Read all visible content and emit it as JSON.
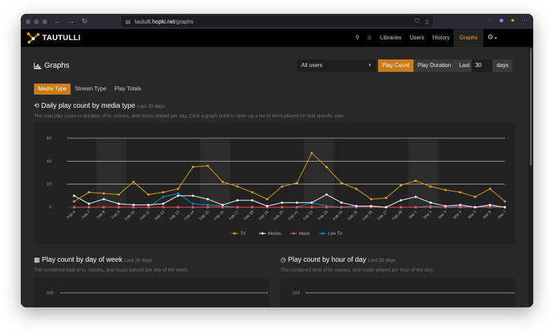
{
  "browser": {
    "url_prefix": "tautulli.",
    "url_host": "hopki.net",
    "url_path": "/graphs"
  },
  "app": {
    "brand": "TAUTULLI",
    "nav": {
      "libraries": "Libraries",
      "users": "Users",
      "history": "History",
      "graphs": "Graphs"
    }
  },
  "page": {
    "title": "Graphs",
    "user_select": "All users",
    "play_count": "Play Count",
    "play_duration": "Play Duration",
    "last_label": "Last",
    "last_value": "30",
    "days_label": "days",
    "tabs": [
      "Media Type",
      "Stream Type",
      "Play Totals"
    ]
  },
  "sections": {
    "daily": {
      "title": "Daily play count by media type",
      "sub": "Last 30 days",
      "desc": "The total play count or duration of tv, movies, and music played per day. Click a graph point to open up a list of items played for that specific date."
    },
    "dow": {
      "title": "Play count by day of week",
      "sub": "Last 30 days",
      "desc": "The combined total of tv, movies, and music played per day of the week.",
      "first_tick": "200"
    },
    "hour": {
      "title": "Play count by hour of day",
      "sub": "Last 30 days",
      "desc": "The combined total of tv, movies, and music played per hour of the day.",
      "first_tick": "100"
    }
  },
  "colors": {
    "accent": "#cc7b19",
    "tv": "#e5a00d",
    "movies": "#ffffff",
    "music": "#f05454",
    "livetv": "#0f8fd8"
  },
  "chart_data": {
    "type": "line",
    "categories": [
      "Feb 6",
      "Feb 7",
      "Feb 8",
      "Feb 9",
      "Feb 10",
      "Feb 11",
      "Feb 12",
      "Feb 13",
      "Feb 14",
      "Feb 15",
      "Feb 16",
      "Feb 17",
      "Feb 18",
      "Feb 19",
      "Feb 20",
      "Feb 21",
      "Feb 22",
      "Feb 23",
      "Feb 24",
      "Feb 25",
      "Feb 26",
      "Feb 27",
      "Feb 28",
      "Mar 1",
      "Mar 2",
      "Mar 3",
      "Mar 4",
      "Mar 5",
      "Mar 6",
      "Mar 7"
    ],
    "yticks": [
      0,
      20,
      40,
      60
    ],
    "ylim": [
      0,
      60
    ],
    "grid": true,
    "legend_position": "bottom-center",
    "series": [
      {
        "name": "TV",
        "color": "#e5a00d",
        "values": [
          5,
          13,
          12,
          11,
          22,
          11,
          13,
          16,
          35,
          36,
          22,
          18,
          13,
          7,
          18,
          21,
          47,
          35,
          21,
          16,
          7,
          8,
          19,
          23,
          18,
          15,
          13,
          9,
          16,
          5
        ]
      },
      {
        "name": "Movies",
        "color": "#ffffff",
        "values": [
          10,
          3,
          7,
          3,
          2,
          2,
          3,
          10,
          10,
          7,
          2,
          6,
          6,
          1,
          4,
          4,
          4,
          11,
          4,
          1,
          1,
          0,
          6,
          9,
          4,
          1,
          2,
          0,
          2,
          0
        ]
      },
      {
        "name": "Music",
        "color": "#f05454",
        "values": [
          0,
          0,
          0,
          0,
          0,
          0,
          0,
          0,
          0,
          0,
          0,
          0,
          0,
          0,
          0,
          0,
          0,
          0,
          0,
          0,
          0,
          0,
          0,
          0,
          0,
          0,
          0,
          0,
          0,
          0
        ]
      },
      {
        "name": "Live TV",
        "color": "#0f8fd8",
        "values": [
          0,
          0,
          0,
          0,
          0,
          0,
          9,
          12,
          3,
          2,
          1,
          0,
          0,
          0,
          0,
          0,
          4,
          1,
          0,
          1,
          1,
          0,
          0,
          0,
          1,
          0,
          1,
          0,
          1,
          0
        ]
      }
    ]
  }
}
